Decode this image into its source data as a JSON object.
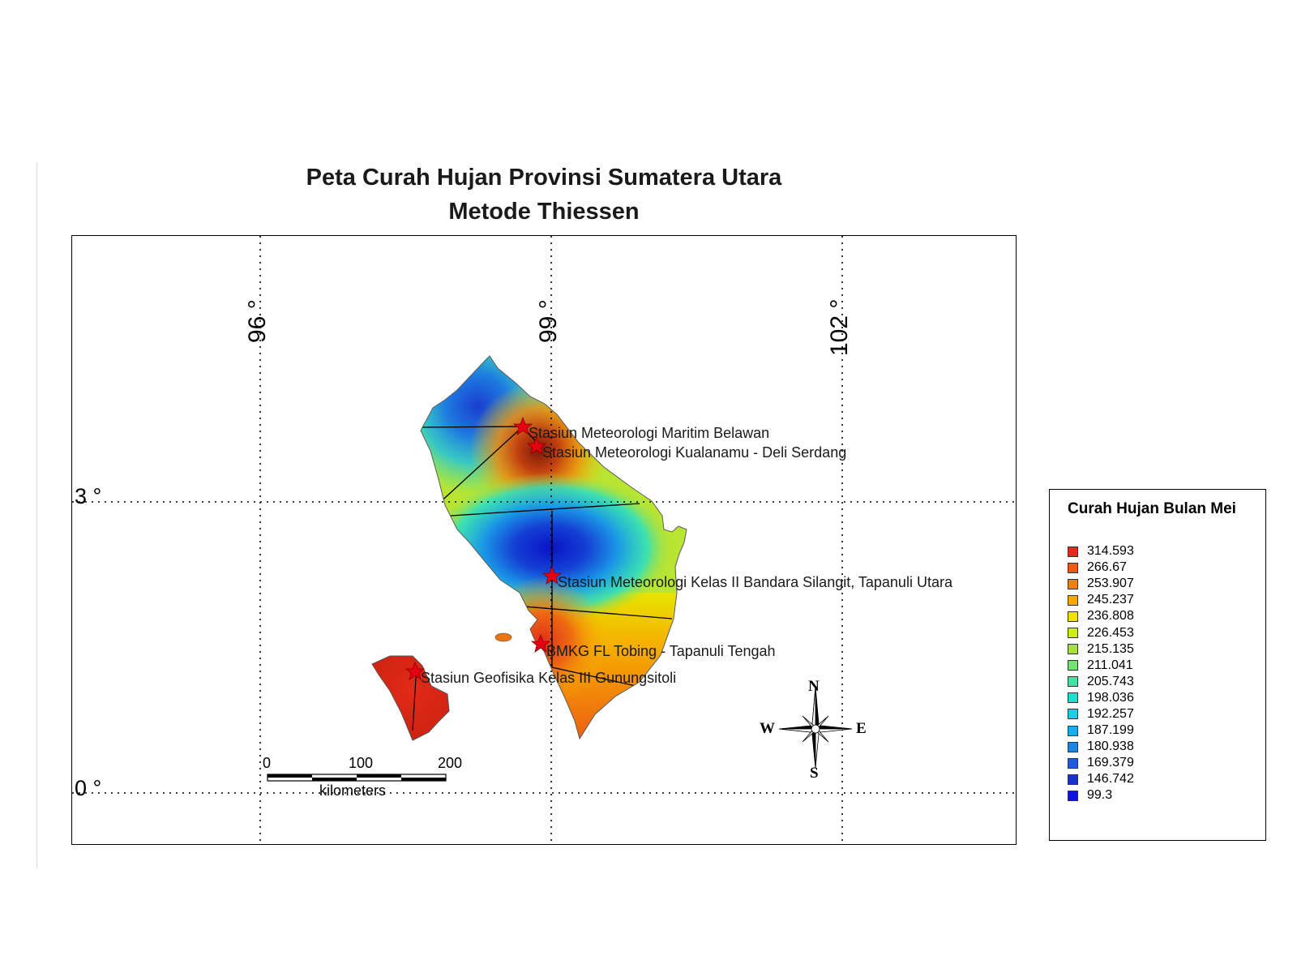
{
  "title": {
    "line1": "Peta Curah Hujan Provinsi Sumatera Utara",
    "line2": "Metode Thiessen"
  },
  "map": {
    "longitude_labels": [
      "96 °",
      "99 °",
      "102 °"
    ],
    "latitude_labels": [
      "3 °",
      "0 °"
    ],
    "stations": [
      {
        "name": "Stasiun Meteorologi Maritim Belawan"
      },
      {
        "name": "Stasiun Meteorologi Kualanamu - Deli Serdang"
      },
      {
        "name": "Stasiun Meteorologi Kelas II Bandara Silangit, Tapanuli Utara"
      },
      {
        "name": "BMKG FL Tobing - Tapanuli Tengah"
      },
      {
        "name": "Stasiun Geofisika Kelas III Gunungsitoli"
      }
    ],
    "scale_bar": {
      "ticks": [
        "0",
        "100",
        "200"
      ],
      "unit": "kilometers"
    },
    "compass": {
      "n": "N",
      "s": "S",
      "e": "E",
      "w": "W"
    }
  },
  "legend": {
    "title": "Curah Hujan Bulan Mei",
    "items": [
      {
        "value": "314.593",
        "color": "#e8281a"
      },
      {
        "value": "266.67",
        "color": "#ee5a12"
      },
      {
        "value": "253.907",
        "color": "#f0800c"
      },
      {
        "value": "245.237",
        "color": "#f6a800"
      },
      {
        "value": "236.808",
        "color": "#f2e200"
      },
      {
        "value": "226.453",
        "color": "#d0ec18"
      },
      {
        "value": "215.135",
        "color": "#a6e03e"
      },
      {
        "value": "211.041",
        "color": "#72e272"
      },
      {
        "value": "205.743",
        "color": "#3ee4a2"
      },
      {
        "value": "198.036",
        "color": "#1ee0d0"
      },
      {
        "value": "192.257",
        "color": "#18d0ea"
      },
      {
        "value": "187.199",
        "color": "#1aaaee"
      },
      {
        "value": "180.938",
        "color": "#1e84e2"
      },
      {
        "value": "169.379",
        "color": "#1c5ed8"
      },
      {
        "value": "146.742",
        "color": "#1634cc"
      },
      {
        "value": "99.3",
        "color": "#0e14d8"
      }
    ]
  }
}
